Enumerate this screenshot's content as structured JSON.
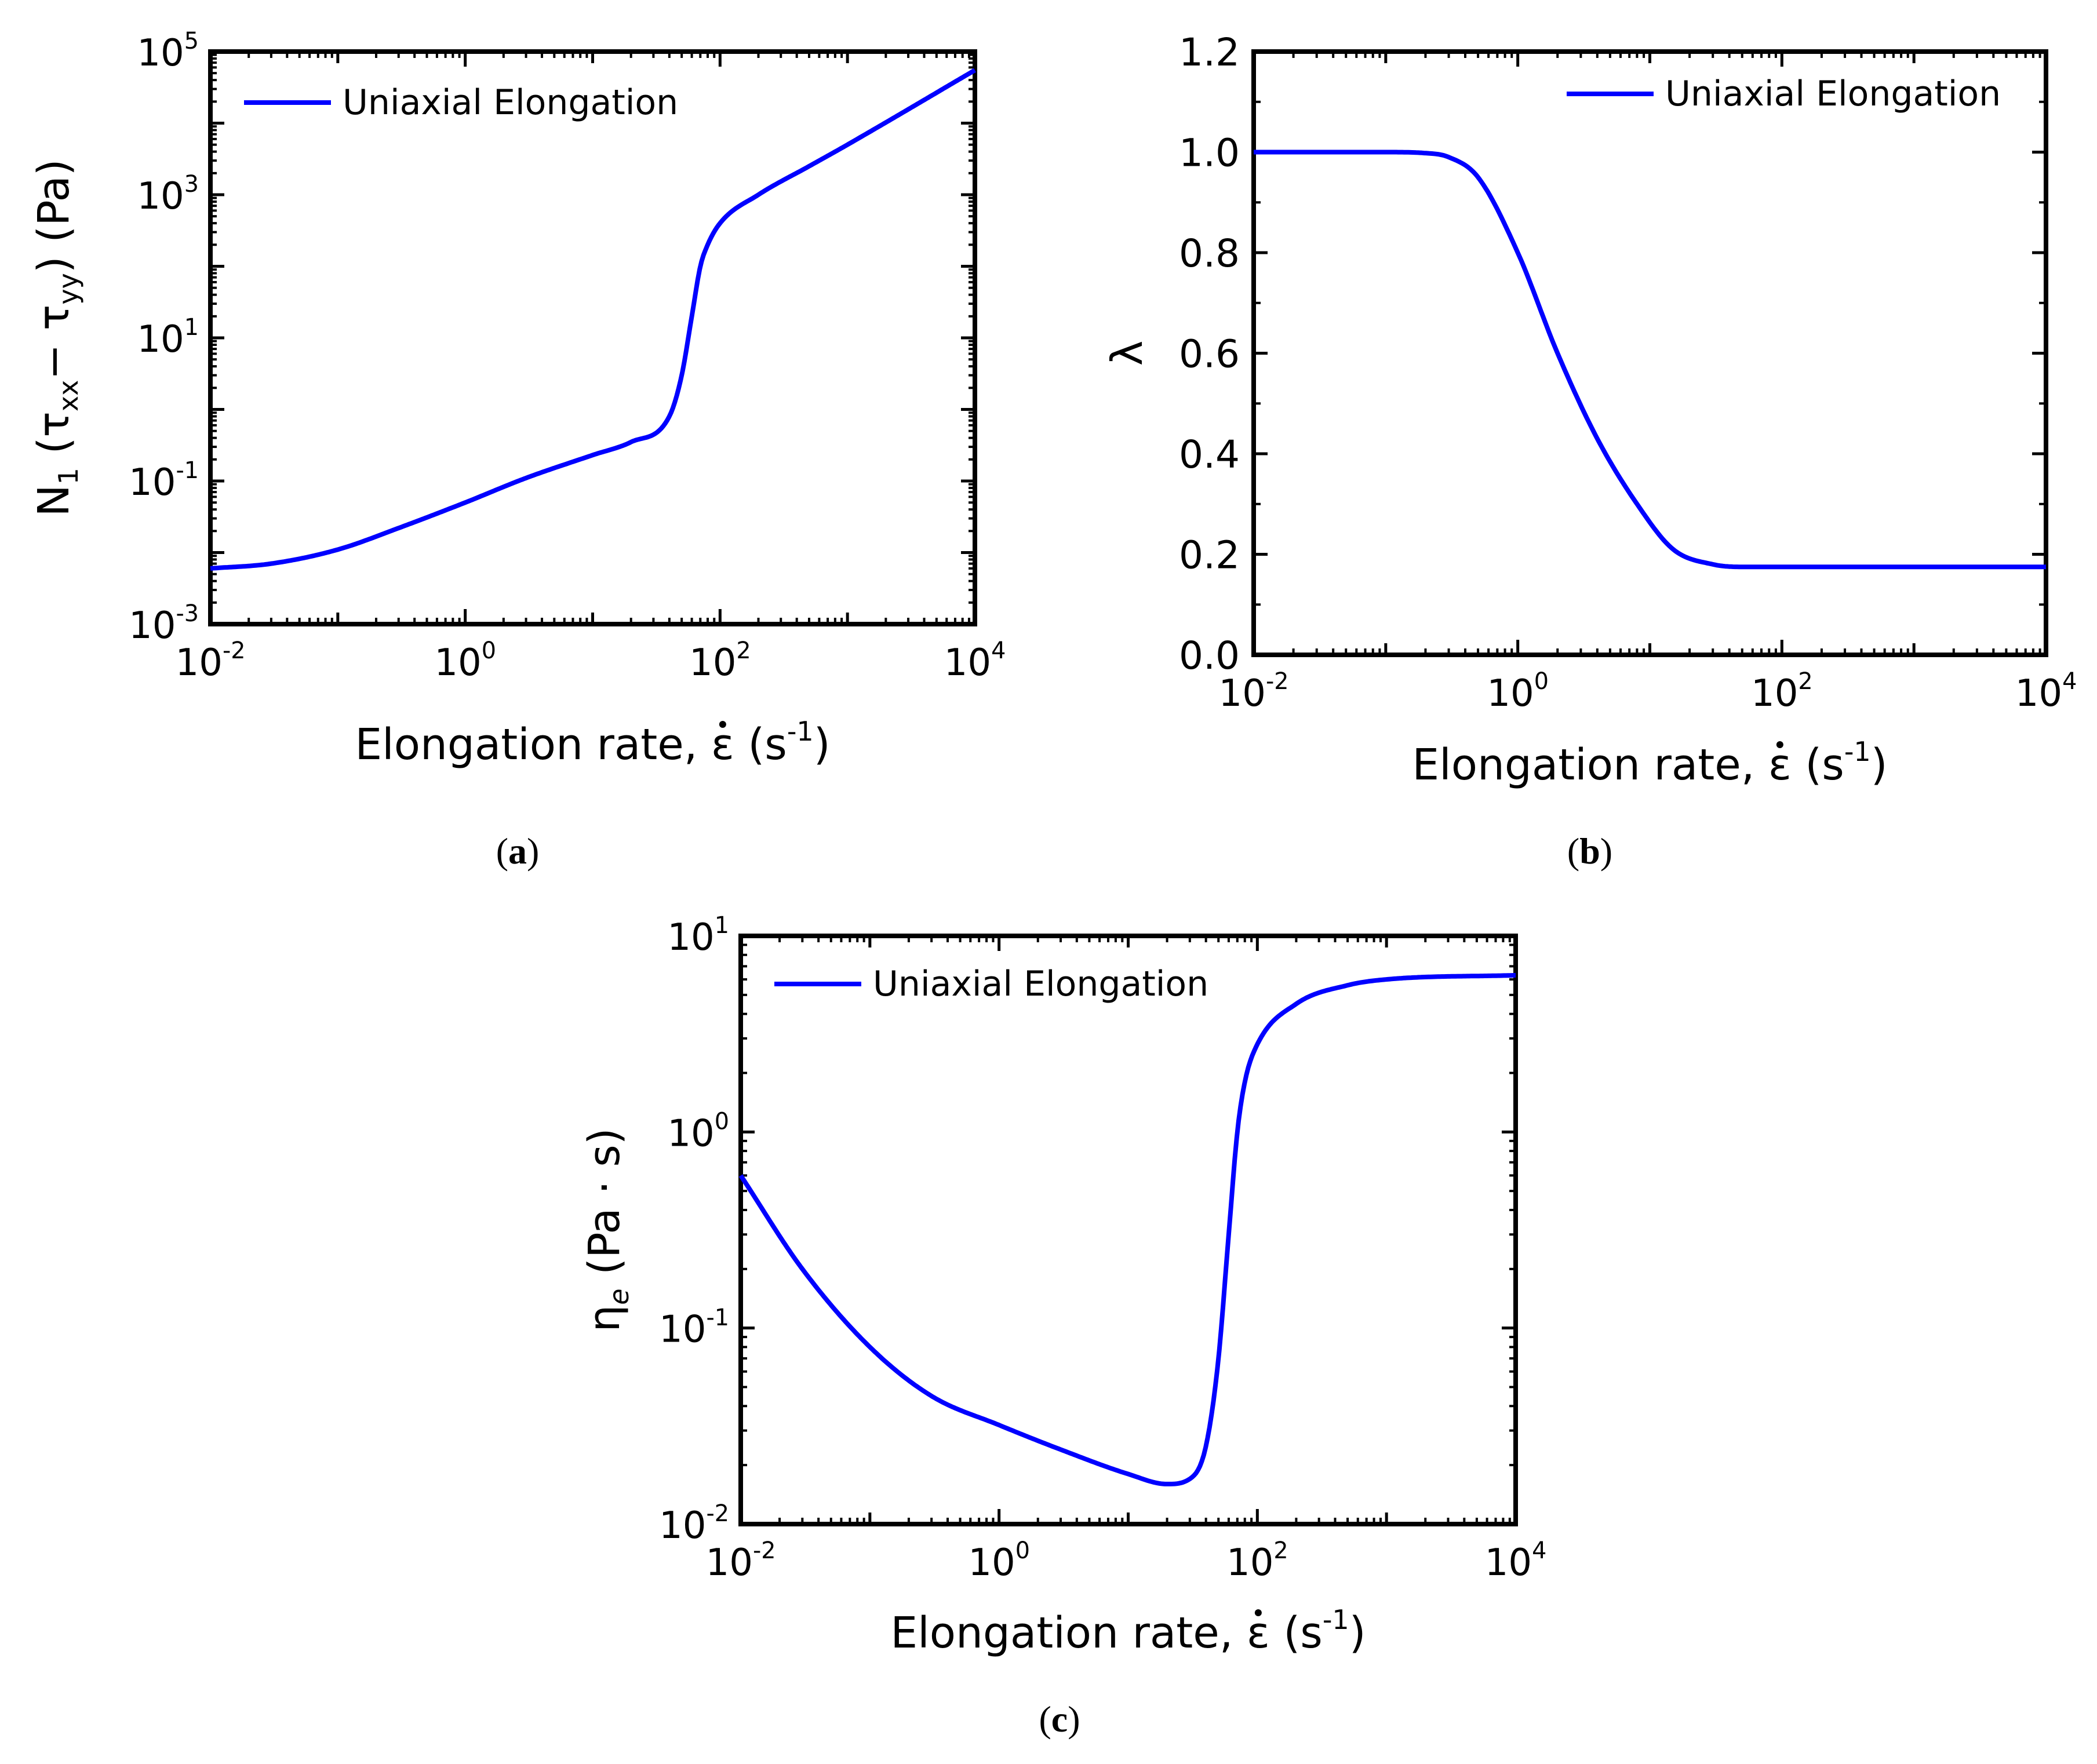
{
  "chart_data": [
    {
      "type": "line",
      "panel_label": "a",
      "x_scale": "log",
      "y_scale": "log",
      "xlim": [
        0.01,
        10000
      ],
      "ylim": [
        0.001,
        100000
      ],
      "ylabel": "N1 (τxx − τyy) (Pa)",
      "ylabel_parts": {
        "base": "N",
        "sub1": "1",
        "paren_open": " (τ",
        "sub_xx": "xx",
        "minus": "− τ",
        "sub_yy": "yy",
        "rest": ") (Pa)"
      },
      "xlabel_parts": {
        "prefix": "Elongation rate, ",
        "symbol": "ε",
        "unit_open": " (s",
        "exp": "-1",
        "unit_close": ")"
      },
      "xticks": [
        {
          "base": "10",
          "exp": "-2"
        },
        {
          "base": "10",
          "exp": "0"
        },
        {
          "base": "10",
          "exp": "2"
        },
        {
          "base": "10",
          "exp": "4"
        }
      ],
      "yticks": [
        {
          "base": "10",
          "exp": "-3"
        },
        {
          "base": "10",
          "exp": "-1"
        },
        {
          "base": "10",
          "exp": "1"
        },
        {
          "base": "10",
          "exp": "3"
        },
        {
          "base": "10",
          "exp": "5"
        }
      ],
      "series": [
        {
          "name": "Uniaxial Elongation",
          "color": "#0000ff",
          "x": [
            0.01,
            0.03,
            0.1,
            0.3,
            1,
            3,
            10,
            20,
            40,
            50,
            60,
            70,
            80,
            100,
            200,
            500,
            1000,
            10000
          ],
          "y": [
            0.006,
            0.007,
            0.011,
            0.022,
            0.05,
            0.11,
            0.23,
            0.35,
            0.8,
            3.0,
            20,
            100,
            200,
            400,
            1000,
            2500,
            5000,
            55000
          ]
        }
      ]
    },
    {
      "type": "line",
      "panel_label": "b",
      "x_scale": "log",
      "y_scale": "linear",
      "xlim": [
        0.01,
        10000
      ],
      "ylim": [
        0,
        1.2
      ],
      "ylabel": "λ",
      "xlabel_parts": {
        "prefix": "Elongation rate, ",
        "symbol": "ε",
        "unit_open": " (s",
        "exp": "-1",
        "unit_close": ")"
      },
      "xticks": [
        {
          "base": "10",
          "exp": "-2"
        },
        {
          "base": "10",
          "exp": "0"
        },
        {
          "base": "10",
          "exp": "2"
        },
        {
          "base": "10",
          "exp": "4"
        }
      ],
      "yticks": [
        "0.0",
        "0.2",
        "0.4",
        "0.6",
        "0.8",
        "1.0",
        "1.2"
      ],
      "series": [
        {
          "name": "Uniaxial Elongation",
          "color": "#0000ff",
          "x": [
            0.01,
            0.1,
            0.2,
            0.3,
            0.5,
            1,
            2,
            4,
            8,
            15,
            30,
            50,
            100,
            1000,
            10000
          ],
          "y": [
            1.0,
            1.0,
            0.998,
            0.99,
            0.95,
            0.8,
            0.6,
            0.43,
            0.3,
            0.21,
            0.18,
            0.175,
            0.175,
            0.175,
            0.175
          ]
        }
      ]
    },
    {
      "type": "line",
      "panel_label": "c",
      "x_scale": "log",
      "y_scale": "log",
      "xlim": [
        0.01,
        10000
      ],
      "ylim": [
        0.01,
        10
      ],
      "ylabel": "ηe (Pa · s)",
      "ylabel_parts": {
        "base": "η",
        "sub": "e",
        "rest": " (Pa · s)"
      },
      "xlabel_parts": {
        "prefix": "Elongation rate, ",
        "symbol": "ε",
        "unit_open": " (s",
        "exp": "-1",
        "unit_close": ")"
      },
      "xticks": [
        {
          "base": "10",
          "exp": "-2"
        },
        {
          "base": "10",
          "exp": "0"
        },
        {
          "base": "10",
          "exp": "2"
        },
        {
          "base": "10",
          "exp": "4"
        }
      ],
      "yticks": [
        {
          "base": "10",
          "exp": "-2"
        },
        {
          "base": "10",
          "exp": "-1"
        },
        {
          "base": "10",
          "exp": "0"
        },
        {
          "base": "10",
          "exp": "1"
        }
      ],
      "series": [
        {
          "name": "Uniaxial Elongation",
          "color": "#0000ff",
          "x": [
            0.01,
            0.03,
            0.1,
            0.3,
            1,
            3,
            10,
            20,
            30,
            40,
            50,
            60,
            70,
            80,
            100,
            200,
            500,
            1000,
            10000
          ],
          "y": [
            0.6,
            0.2,
            0.08,
            0.045,
            0.032,
            0.024,
            0.018,
            0.016,
            0.017,
            0.025,
            0.07,
            0.3,
            1.0,
            1.8,
            2.8,
            4.5,
            5.6,
            6.0,
            6.3
          ]
        }
      ]
    }
  ]
}
